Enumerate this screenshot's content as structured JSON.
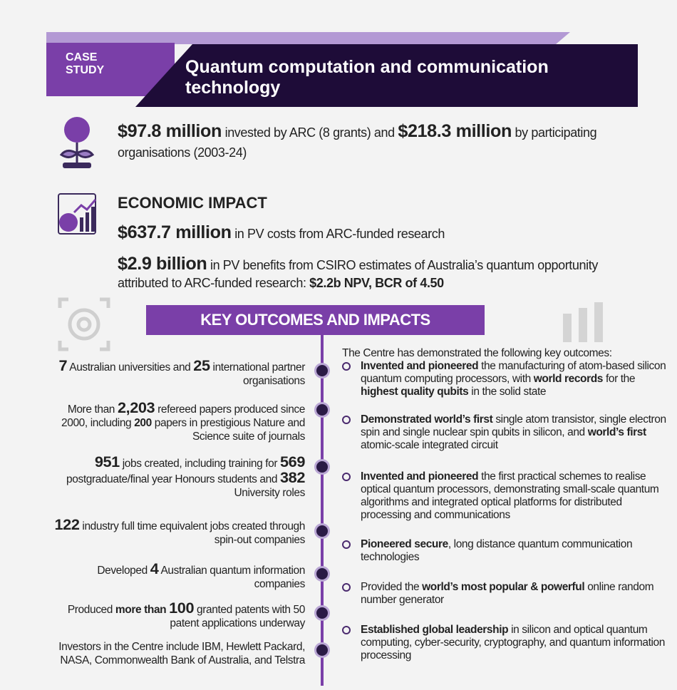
{
  "header": {
    "label": [
      "CASE",
      "STUDY"
    ],
    "title": "Quantum computation and communication technology"
  },
  "funding": [
    {
      "text": "$97.8 million",
      "style": "big"
    },
    {
      "text": " invested by ARC (8 grants) and "
    },
    {
      "text": "$218.3 million",
      "style": "big"
    },
    {
      "text": " by participating organisations  (2003-24)"
    }
  ],
  "economic": {
    "heading": "ECONOMIC IMPACT",
    "items": [
      [
        {
          "text": "$637.7 million",
          "style": "big"
        },
        {
          "text": " in PV costs from ARC-funded research"
        }
      ],
      [
        {
          "text": "$2.9 billion",
          "style": "big"
        },
        {
          "text": " in PV benefits from CSIRO estimates of Australia’s quantum opportunity attributed to ARC-funded research: "
        },
        {
          "text": "$2.2b NPV, BCR of 4.50",
          "style": "bold"
        }
      ]
    ]
  },
  "outcomes": {
    "heading": "KEY OUTCOMES AND IMPACTS",
    "left": [
      [
        {
          "text": "7",
          "style": "big"
        },
        {
          "text": " Australian universities and "
        },
        {
          "text": "25",
          "style": "big"
        },
        {
          "text": " international partner organisations"
        }
      ],
      [
        {
          "text": "More than "
        },
        {
          "text": "2,203",
          "style": "big"
        },
        {
          "text": " refereed papers produced since 2000, including "
        },
        {
          "text": "200",
          "style": "bold"
        },
        {
          "text": " papers in prestigious Nature and Science suite of journals"
        }
      ],
      [
        {
          "text": "951",
          "style": "big"
        },
        {
          "text": " jobs created, including training for "
        },
        {
          "text": "569",
          "style": "big"
        },
        {
          "text": " postgraduate/final year Honours students and "
        },
        {
          "text": "382",
          "style": "big"
        },
        {
          "text": " University roles"
        }
      ],
      [
        {
          "text": "122",
          "style": "big"
        },
        {
          "text": " industry full time equivalent jobs created through spin-out companies"
        }
      ],
      [
        {
          "text": "Developed "
        },
        {
          "text": "4",
          "style": "big"
        },
        {
          "text": " Australian quantum information companies"
        }
      ],
      [
        {
          "text": "Produced "
        },
        {
          "text": "more than ",
          "style": "bold"
        },
        {
          "text": "100",
          "style": "big"
        },
        {
          "text": " granted patents with 50 patent applications underway"
        }
      ],
      [
        {
          "text": "Investors in the Centre include IBM, Hewlett Packard, NASA, Commonwealth Bank of Australia, and Telstra"
        }
      ]
    ],
    "intro": "The Centre has demonstrated the following key outcomes:",
    "right": [
      [
        {
          "text": "Invented and pioneered",
          "style": "bold"
        },
        {
          "text": " the manufacturing of atom-based silicon quantum computing processors, with "
        },
        {
          "text": "world records",
          "style": "bold"
        },
        {
          "text": " for the "
        },
        {
          "text": "highest quality qubits",
          "style": "bold"
        },
        {
          "text": " in the solid state"
        }
      ],
      [
        {
          "text": "Demonstrated world’s first",
          "style": "bold"
        },
        {
          "text": " single atom transistor, single electron spin and single nuclear spin qubits in silicon, and "
        },
        {
          "text": "world’s first",
          "style": "bold"
        },
        {
          "text": " atomic-scale integrated circuit"
        }
      ],
      [
        {
          "text": "Invented and pioneered",
          "style": "bold"
        },
        {
          "text": " the first practical schemes to realise optical quantum processors, demonstrating small-scale quantum algorithms and integrated optical platforms for distributed processing and communications"
        }
      ],
      [
        {
          "text": "Pioneered secure",
          "style": "bold"
        },
        {
          "text": ", long distance quantum communication technologies"
        }
      ],
      [
        {
          "text": "Provided the "
        },
        {
          "text": "world’s most popular & powerful",
          "style": "bold"
        },
        {
          "text": " online random number generator"
        }
      ],
      [
        {
          "text": "Established global leadership",
          "style": "bold"
        },
        {
          "text": " in silicon and optical quantum computing, cyber-security, cryptography, and quantum information processing"
        }
      ]
    ]
  }
}
